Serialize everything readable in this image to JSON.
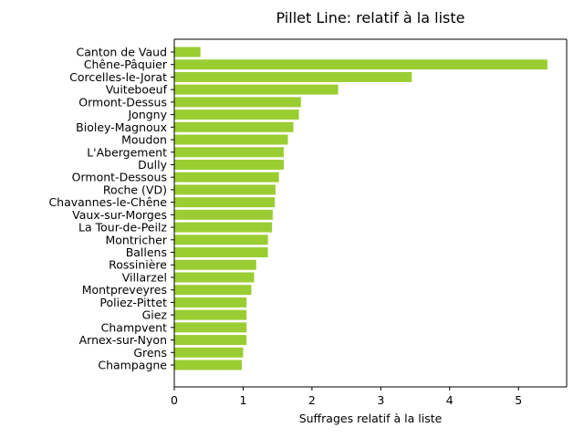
{
  "chart_data": {
    "type": "bar",
    "orientation": "horizontal",
    "title": "Pillet Line: relatif à la liste",
    "xlabel": "Suffrages relatif à la liste",
    "ylabel": "",
    "xlim": [
      0,
      5.7
    ],
    "xticks": [
      0,
      1,
      2,
      3,
      4,
      5
    ],
    "grid": false,
    "bar_color": "#9acd32",
    "categories": [
      "Canton de Vaud",
      "Chêne-Pâquier",
      "Corcelles-le-Jorat",
      "Vuiteboeuf",
      "Ormont-Dessus",
      "Jongny",
      "Bioley-Magnoux",
      "Moudon",
      "L'Abergement",
      "Dully",
      "Ormont-Dessous",
      "Roche (VD)",
      "Chavannes-le-Chêne",
      "Vaux-sur-Morges",
      "La Tour-de-Peilz",
      "Montricher",
      "Ballens",
      "Rossinière",
      "Villarzel",
      "Montpreveyres",
      "Poliez-Pittet",
      "Giez",
      "Champvent",
      "Arnex-sur-Nyon",
      "Grens",
      "Champagne"
    ],
    "values": [
      0.38,
      5.42,
      3.45,
      2.38,
      1.84,
      1.81,
      1.73,
      1.65,
      1.59,
      1.59,
      1.52,
      1.47,
      1.46,
      1.43,
      1.42,
      1.36,
      1.36,
      1.19,
      1.16,
      1.12,
      1.05,
      1.05,
      1.05,
      1.05,
      1.0,
      0.98
    ]
  }
}
